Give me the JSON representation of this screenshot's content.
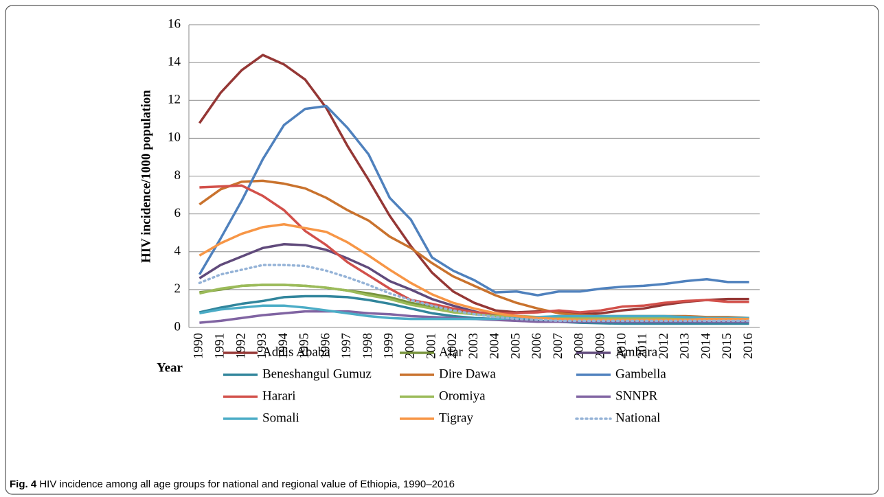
{
  "chart_data": {
    "type": "line",
    "caption_label": "Fig. 4",
    "caption": "HIV incidence among all age groups for national and regional value of Ethiopia, 1990–2016",
    "y_label": "HIV incidence/1000 population",
    "x_label": "Year",
    "categories": [
      "1990",
      "1991",
      "1992",
      "1993",
      "1994",
      "1995",
      "1996",
      "1997",
      "1998",
      "1999",
      "2000",
      "2001",
      "2002",
      "2003",
      "2004",
      "2005",
      "2006",
      "2007",
      "2008",
      "2009",
      "2010",
      "2011",
      "2012",
      "2013",
      "2014",
      "2015",
      "2016"
    ],
    "ylim": [
      0,
      16
    ],
    "yticks": [
      0,
      2,
      4,
      6,
      8,
      10,
      12,
      14,
      16
    ],
    "grid": true,
    "series": [
      {
        "name": "Addis Ababa",
        "color": "#953735",
        "values": [
          10.8,
          12.4,
          13.6,
          14.4,
          13.9,
          13.1,
          11.6,
          9.6,
          7.8,
          5.9,
          4.3,
          2.9,
          1.9,
          1.3,
          0.9,
          0.8,
          0.85,
          0.85,
          0.7,
          0.75,
          0.9,
          1.0,
          1.2,
          1.35,
          1.45,
          1.5,
          1.5
        ]
      },
      {
        "name": "Afar",
        "color": "#77933c",
        "values": [
          1.85,
          2.0,
          2.2,
          2.25,
          2.25,
          2.2,
          2.1,
          1.95,
          1.8,
          1.6,
          1.3,
          1.1,
          0.9,
          0.75,
          0.65,
          0.6,
          0.55,
          0.55,
          0.5,
          0.5,
          0.5,
          0.5,
          0.5,
          0.5,
          0.5,
          0.5,
          0.5
        ]
      },
      {
        "name": "Amhara",
        "color": "#604a7b",
        "values": [
          2.6,
          3.3,
          3.75,
          4.2,
          4.4,
          4.35,
          4.1,
          3.65,
          3.15,
          2.45,
          2.0,
          1.5,
          1.15,
          0.85,
          0.6,
          0.45,
          0.35,
          0.3,
          0.28,
          0.27,
          0.27,
          0.27,
          0.27,
          0.27,
          0.27,
          0.27,
          0.27
        ]
      },
      {
        "name": "Beneshangul Gumuz",
        "color": "#31859c",
        "values": [
          0.8,
          1.05,
          1.25,
          1.4,
          1.6,
          1.65,
          1.65,
          1.6,
          1.45,
          1.25,
          1.0,
          0.75,
          0.6,
          0.5,
          0.45,
          0.4,
          0.35,
          0.3,
          0.25,
          0.22,
          0.2,
          0.2,
          0.2,
          0.2,
          0.2,
          0.2,
          0.2
        ]
      },
      {
        "name": "Dire Dawa",
        "color": "#c9722d",
        "values": [
          6.5,
          7.3,
          7.7,
          7.75,
          7.6,
          7.35,
          6.85,
          6.2,
          5.65,
          4.8,
          4.2,
          3.4,
          2.7,
          2.2,
          1.7,
          1.3,
          1.0,
          0.75,
          0.65,
          0.6,
          0.6,
          0.6,
          0.6,
          0.6,
          0.55,
          0.55,
          0.5
        ]
      },
      {
        "name": "Gambella",
        "color": "#4f81bd",
        "values": [
          2.8,
          4.7,
          6.7,
          8.9,
          10.7,
          11.55,
          11.7,
          10.55,
          9.15,
          6.85,
          5.7,
          3.7,
          3.0,
          2.5,
          1.85,
          1.9,
          1.7,
          1.9,
          1.9,
          2.05,
          2.15,
          2.2,
          2.3,
          2.45,
          2.55,
          2.4,
          2.4
        ]
      },
      {
        "name": "Harari",
        "color": "#d2504a",
        "values": [
          7.4,
          7.45,
          7.5,
          6.95,
          6.2,
          5.1,
          4.35,
          3.45,
          2.75,
          2.05,
          1.45,
          1.25,
          1.0,
          0.8,
          0.75,
          0.75,
          0.8,
          0.9,
          0.8,
          0.9,
          1.1,
          1.15,
          1.3,
          1.4,
          1.45,
          1.35,
          1.35
        ]
      },
      {
        "name": "Oromiya",
        "color": "#9bbb59",
        "values": [
          1.8,
          2.05,
          2.2,
          2.25,
          2.25,
          2.2,
          2.1,
          1.95,
          1.7,
          1.5,
          1.2,
          1.0,
          0.8,
          0.7,
          0.6,
          0.55,
          0.5,
          0.5,
          0.5,
          0.5,
          0.5,
          0.5,
          0.5,
          0.5,
          0.5,
          0.5,
          0.5
        ]
      },
      {
        "name": "SNNPR",
        "color": "#8064a2",
        "values": [
          0.25,
          0.35,
          0.5,
          0.65,
          0.75,
          0.85,
          0.85,
          0.85,
          0.75,
          0.7,
          0.6,
          0.55,
          0.5,
          0.45,
          0.4,
          0.35,
          0.3,
          0.3,
          0.3,
          0.3,
          0.3,
          0.3,
          0.3,
          0.3,
          0.3,
          0.3,
          0.3
        ]
      },
      {
        "name": "Somali",
        "color": "#4bacc6",
        "values": [
          0.75,
          0.95,
          1.05,
          1.15,
          1.15,
          1.05,
          0.9,
          0.75,
          0.6,
          0.5,
          0.45,
          0.45,
          0.45,
          0.45,
          0.45,
          0.5,
          0.55,
          0.6,
          0.6,
          0.6,
          0.6,
          0.6,
          0.6,
          0.55,
          0.5,
          0.5,
          0.5
        ]
      },
      {
        "name": "Tigray",
        "color": "#f79646",
        "values": [
          3.8,
          4.45,
          4.95,
          5.3,
          5.45,
          5.25,
          5.05,
          4.5,
          3.8,
          3.05,
          2.35,
          1.75,
          1.3,
          1.0,
          0.75,
          0.6,
          0.5,
          0.45,
          0.4,
          0.4,
          0.4,
          0.4,
          0.4,
          0.4,
          0.45,
          0.45,
          0.45
        ]
      },
      {
        "name": "National",
        "color": "#95b3d7",
        "dashed": true,
        "values": [
          2.35,
          2.8,
          3.05,
          3.3,
          3.3,
          3.25,
          3.0,
          2.65,
          2.25,
          1.8,
          1.45,
          1.15,
          0.9,
          0.7,
          0.55,
          0.45,
          0.4,
          0.35,
          0.35,
          0.35,
          0.35,
          0.35,
          0.35,
          0.35,
          0.35,
          0.35,
          0.35
        ]
      }
    ]
  }
}
